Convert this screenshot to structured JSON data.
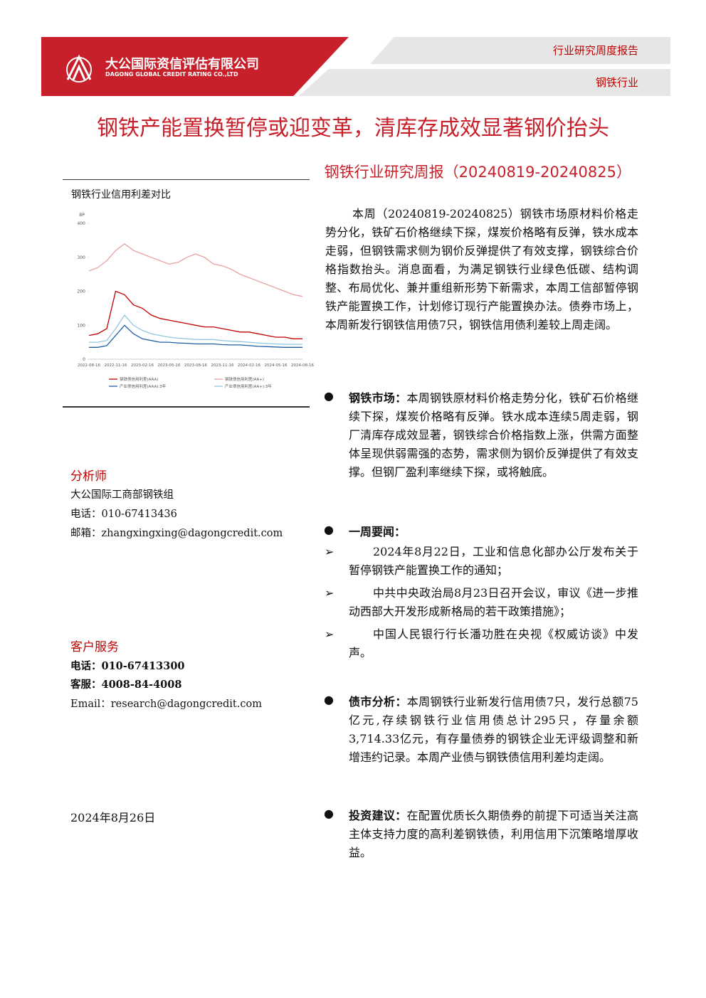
{
  "header": {
    "company_cn": "大公国际资信评估有限公司",
    "company_en": "DAGONG GLOBAL CREDIT RATING CO.,LTD",
    "report_type": "行业研究周度报告",
    "industry": "钢铁行业"
  },
  "title": "钢铁产能置换暂停或迎变革，清库存成效显著钢价抬头",
  "subtitle": "钢铁行业研究周报（20240819-20240825）",
  "figure_caption": "钢铁行业信用利差对比",
  "chart_data": {
    "type": "line",
    "y_label": "BP",
    "x": [
      "2022-08-16",
      null,
      null,
      "2022-11-16",
      null,
      null,
      "2023-02-16",
      null,
      null,
      "2023-05-16",
      null,
      null,
      "2023-08-16",
      null,
      null,
      "2023-11-16",
      null,
      null,
      "2024-02-16",
      null,
      null,
      "2024-05-16",
      null,
      null,
      "2024-08-16"
    ],
    "ylim": [
      0,
      400
    ],
    "yticks": [
      0,
      100,
      200,
      300,
      400
    ],
    "grid": false,
    "series": [
      {
        "name": "钢铁债信用利差(AAA)",
        "color": "#c00000",
        "values": [
          70,
          75,
          90,
          200,
          190,
          160,
          150,
          130,
          120,
          115,
          110,
          105,
          100,
          95,
          95,
          90,
          85,
          80,
          80,
          75,
          70,
          65,
          65,
          60,
          60
        ]
      },
      {
        "name": "钢铁债信用利差(AA+)",
        "color": "#e8a0a0",
        "values": [
          260,
          270,
          290,
          320,
          340,
          320,
          310,
          300,
          290,
          280,
          285,
          300,
          310,
          300,
          280,
          275,
          265,
          250,
          240,
          230,
          220,
          210,
          200,
          190,
          185
        ]
      },
      {
        "name": "产业债信用利差(AAA):3年",
        "color": "#1f5fa8",
        "values": [
          35,
          35,
          40,
          70,
          100,
          75,
          60,
          55,
          50,
          50,
          48,
          47,
          45,
          45,
          45,
          43,
          42,
          42,
          40,
          38,
          37,
          36,
          35,
          35,
          35
        ]
      },
      {
        "name": "产业债信用利差(AA+):3年",
        "color": "#8fc8e0",
        "values": [
          50,
          50,
          55,
          90,
          130,
          100,
          85,
          75,
          70,
          65,
          62,
          60,
          58,
          58,
          58,
          55,
          53,
          52,
          50,
          48,
          46,
          45,
          44,
          44,
          44
        ]
      }
    ]
  },
  "sidebar": {
    "analyst_heading": "分析师",
    "analyst_team": "大公国际工商部钢铁组",
    "analyst_phone": "电话：010-67413436",
    "analyst_email": "邮箱：zhangxingxing@dagongcredit.com",
    "service_heading": "客户服务",
    "service_phone": "电话：010-67413300",
    "service_hotline": "客服：4008-84-4008",
    "service_email": "Email：research@dagongcredit.com",
    "date": "2024年8月26日"
  },
  "summary": "本周（20240819-20240825）钢铁市场原材料价格走势分化，铁矿石价格继续下探，煤炭价格略有反弹，铁水成本走弱，但钢铁需求侧为钢价反弹提供了有效支撑，钢铁综合价格指数抬头。消息面看，为满足钢铁行业绿色低碳、结构调整、布局优化、兼并重组新形势下新需求，本周工信部暂停钢铁产能置换工作，计划修订现行产能置换办法。债券市场上，本周新发行钢铁信用债7只，钢铁信用债利差较上周走阔。",
  "bullets": [
    {
      "lead": "钢铁市场：",
      "text": "本周钢铁原材料价格走势分化，铁矿石价格继续下探，煤炭价格略有反弹。铁水成本连续5周走弱，钢厂清库存成效显著，钢铁综合价格指数上涨，供需方面整体呈现供弱需强的态势，需求侧为钢价反弹提供了有效支撑。但钢厂盈利率继续下探，或将触底。"
    },
    {
      "lead": "一周要闻：",
      "items": [
        "2024年8月22日，工业和信息化部办公厅发布关于暂停钢铁产能置换工作的通知；",
        "中共中央政治局8月23日召开会议，审议《进一步推动西部大开发形成新格局的若干政策措施》；",
        "中国人民银行行长潘功胜在央视《权威访谈》中发声。"
      ]
    },
    {
      "lead": "债市分析：",
      "text": "本周钢铁行业新发行信用债7只，发行总额75亿元,存续钢铁行业信用债总计295只，存量余额3,714.33亿元，有存量债券的钢铁企业无评级调整和新增违约记录。本周产业债与钢铁债信用利差均走阔。"
    },
    {
      "lead": "投资建议：",
      "text": "在配置优质长久期债券的前提下可适当关注高主体支持力度的高利差钢铁债，利用信用下沉策略增厚收益。"
    }
  ]
}
